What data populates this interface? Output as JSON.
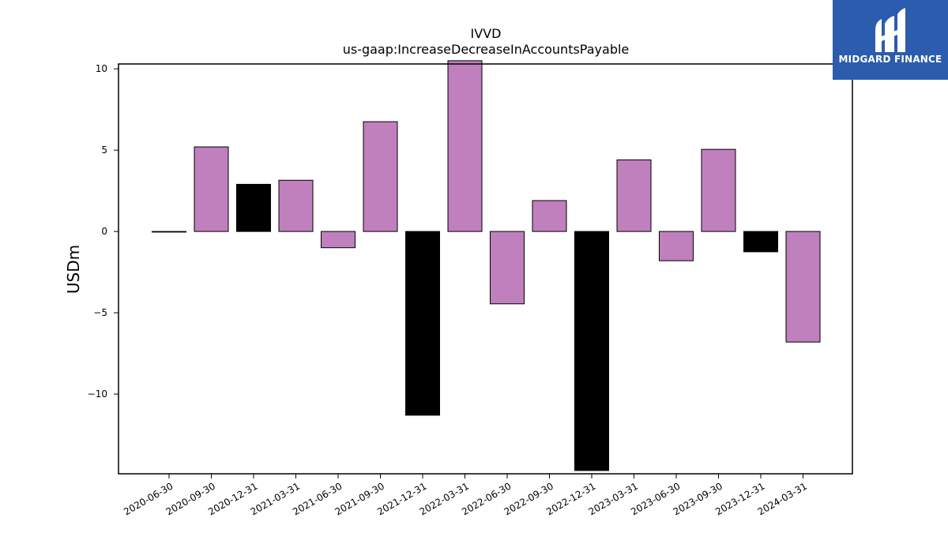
{
  "chart_data": {
    "type": "bar",
    "title": "IVVD",
    "subtitle": "us-gaap:IncreaseDecreaseInAccountsPayable",
    "xlabel": "",
    "ylabel": "USDm",
    "ylim": [
      -14.9,
      10.3
    ],
    "yticks": [
      10,
      5,
      0,
      -5,
      -10
    ],
    "ytick_labels": [
      "10",
      "5",
      "0",
      "−5",
      "−10"
    ],
    "grid": false,
    "categories": [
      "2020-06-30",
      "2020-09-30",
      "2020-12-31",
      "2021-03-31",
      "2021-06-30",
      "2021-09-30",
      "2021-12-31",
      "2022-03-31",
      "2022-06-30",
      "2022-09-30",
      "2022-12-31",
      "2023-03-31",
      "2023-06-30",
      "2023-09-30",
      "2023-12-31",
      "2024-03-31"
    ],
    "values": [
      0.0,
      5.2,
      2.9,
      3.15,
      -1.0,
      6.75,
      -11.3,
      10.5,
      -4.45,
      1.9,
      -14.7,
      4.4,
      -1.8,
      5.05,
      -1.25,
      -6.8
    ],
    "colors": [
      "#000000",
      "#bf80bd",
      "#000000",
      "#bf80bd",
      "#bf80bd",
      "#bf80bd",
      "#000000",
      "#bf80bd",
      "#bf80bd",
      "#bf80bd",
      "#000000",
      "#bf80bd",
      "#bf80bd",
      "#bf80bd",
      "#000000",
      "#bf80bd"
    ]
  },
  "logo": {
    "text": "MIDGARD FINANCE",
    "color": "#2b5cae"
  }
}
